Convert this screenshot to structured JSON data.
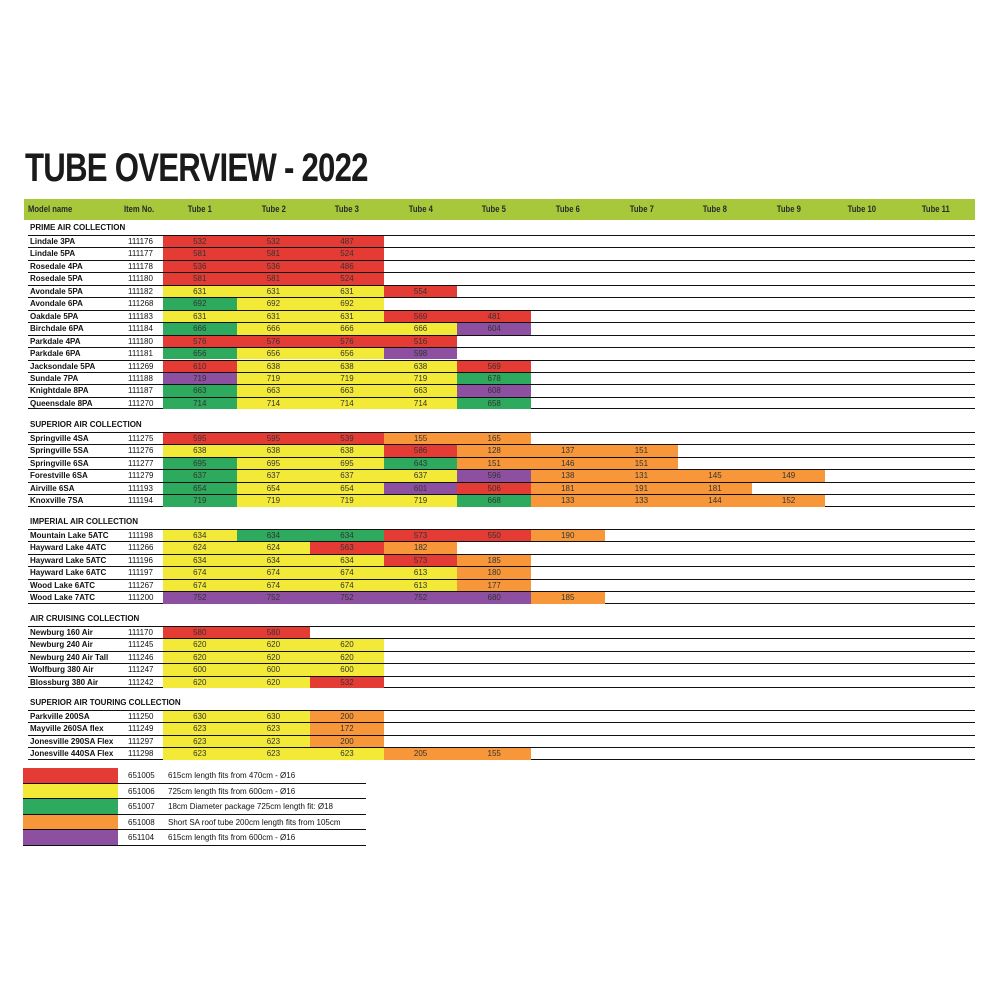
{
  "title": "TUBE OVERVIEW - 2022",
  "colors": {
    "r": "#e43c34",
    "y": "#f3ea38",
    "g": "#2daa5d",
    "o": "#f7973a",
    "p": "#8d4f9f",
    "header": "#a6c83a"
  },
  "headers": [
    "Model name",
    "Item No.",
    "Tube 1",
    "Tube 2",
    "Tube 3",
    "Tube 4",
    "Tube 5",
    "Tube 6",
    "Tube 7",
    "Tube 8",
    "Tube 9",
    "Tube 10",
    "Tube 11"
  ],
  "sections": [
    {
      "title": "PRIME AIR COLLECTION",
      "rows": [
        {
          "name": "Lindale 3PA",
          "item": "111176",
          "cells": [
            [
              "532",
              "r"
            ],
            [
              "532",
              "r"
            ],
            [
              "487",
              "r"
            ]
          ]
        },
        {
          "name": "Lindale 5PA",
          "item": "111177",
          "cells": [
            [
              "581",
              "r"
            ],
            [
              "581",
              "r"
            ],
            [
              "524",
              "r"
            ]
          ]
        },
        {
          "name": "Rosedale 4PA",
          "item": "111178",
          "cells": [
            [
              "536",
              "r"
            ],
            [
              "536",
              "r"
            ],
            [
              "486",
              "r"
            ]
          ]
        },
        {
          "name": "Rosedale 5PA",
          "item": "111180",
          "cells": [
            [
              "581",
              "r"
            ],
            [
              "581",
              "r"
            ],
            [
              "524",
              "r"
            ]
          ]
        },
        {
          "name": "Avondale 5PA",
          "item": "111182",
          "cells": [
            [
              "631",
              "y"
            ],
            [
              "631",
              "y"
            ],
            [
              "631",
              "y"
            ],
            [
              "554",
              "r"
            ]
          ]
        },
        {
          "name": "Avondale 6PA",
          "item": "111268",
          "cells": [
            [
              "692",
              "g"
            ],
            [
              "692",
              "y"
            ],
            [
              "692",
              "y"
            ]
          ]
        },
        {
          "name": "Oakdale 5PA",
          "item": "111183",
          "cells": [
            [
              "631",
              "y"
            ],
            [
              "631",
              "y"
            ],
            [
              "631",
              "y"
            ],
            [
              "569",
              "r"
            ],
            [
              "481",
              "r"
            ]
          ]
        },
        {
          "name": "Birchdale 6PA",
          "item": "111184",
          "cells": [
            [
              "666",
              "g"
            ],
            [
              "666",
              "y"
            ],
            [
              "666",
              "y"
            ],
            [
              "666",
              "y"
            ],
            [
              "604",
              "p"
            ]
          ]
        },
        {
          "name": "Parkdale 4PA",
          "item": "111180",
          "cells": [
            [
              "576",
              "r"
            ],
            [
              "576",
              "r"
            ],
            [
              "576",
              "r"
            ],
            [
              "516",
              "r"
            ]
          ]
        },
        {
          "name": "Parkdale 6PA",
          "item": "111181",
          "cells": [
            [
              "656",
              "g"
            ],
            [
              "656",
              "y"
            ],
            [
              "656",
              "y"
            ],
            [
              "598",
              "p"
            ]
          ]
        },
        {
          "name": "Jacksondale 5PA",
          "item": "111269",
          "cells": [
            [
              "610",
              "r"
            ],
            [
              "638",
              "y"
            ],
            [
              "638",
              "y"
            ],
            [
              "638",
              "y"
            ],
            [
              "569",
              "r"
            ]
          ]
        },
        {
          "name": "Sundale 7PA",
          "item": "111188",
          "cells": [
            [
              "719",
              "p"
            ],
            [
              "719",
              "y"
            ],
            [
              "719",
              "y"
            ],
            [
              "719",
              "y"
            ],
            [
              "678",
              "g"
            ]
          ]
        },
        {
          "name": "Knightdale 8PA",
          "item": "111187",
          "cells": [
            [
              "663",
              "g"
            ],
            [
              "663",
              "y"
            ],
            [
              "663",
              "y"
            ],
            [
              "663",
              "y"
            ],
            [
              "608",
              "p"
            ]
          ]
        },
        {
          "name": "Queensdale 8PA",
          "item": "111270",
          "cells": [
            [
              "714",
              "g"
            ],
            [
              "714",
              "y"
            ],
            [
              "714",
              "y"
            ],
            [
              "714",
              "y"
            ],
            [
              "658",
              "g"
            ]
          ]
        }
      ]
    },
    {
      "title": "SUPERIOR AIR COLLECTION",
      "rows": [
        {
          "name": "Springville 4SA",
          "item": "111275",
          "cells": [
            [
              "595",
              "r"
            ],
            [
              "595",
              "r"
            ],
            [
              "539",
              "r"
            ],
            [
              "155",
              "o"
            ],
            [
              "165",
              "o"
            ]
          ]
        },
        {
          "name": "Springville 5SA",
          "item": "111276",
          "cells": [
            [
              "638",
              "y"
            ],
            [
              "638",
              "y"
            ],
            [
              "638",
              "y"
            ],
            [
              "586",
              "r"
            ],
            [
              "128",
              "o"
            ],
            [
              "137",
              "o"
            ],
            [
              "151",
              "o"
            ]
          ]
        },
        {
          "name": "Springville 6SA",
          "item": "111277",
          "cells": [
            [
              "695",
              "g"
            ],
            [
              "695",
              "y"
            ],
            [
              "695",
              "y"
            ],
            [
              "643",
              "g"
            ],
            [
              "151",
              "o"
            ],
            [
              "146",
              "o"
            ],
            [
              "151",
              "o"
            ]
          ]
        },
        {
          "name": "Forestville 6SA",
          "item": "111279",
          "cells": [
            [
              "637",
              "g"
            ],
            [
              "637",
              "y"
            ],
            [
              "637",
              "y"
            ],
            [
              "637",
              "y"
            ],
            [
              "596",
              "p"
            ],
            [
              "138",
              "o"
            ],
            [
              "131",
              "o"
            ],
            [
              "145",
              "o"
            ],
            [
              "149",
              "o"
            ]
          ]
        },
        {
          "name": "Airville 6SA",
          "item": "111193",
          "cells": [
            [
              "654",
              "g"
            ],
            [
              "654",
              "y"
            ],
            [
              "654",
              "y"
            ],
            [
              "601",
              "p"
            ],
            [
              "506",
              "r"
            ],
            [
              "181",
              "o"
            ],
            [
              "191",
              "o"
            ],
            [
              "181",
              "o"
            ]
          ]
        },
        {
          "name": "Knoxville 7SA",
          "item": "111194",
          "cells": [
            [
              "719",
              "g"
            ],
            [
              "719",
              "y"
            ],
            [
              "719",
              "y"
            ],
            [
              "719",
              "y"
            ],
            [
              "668",
              "g"
            ],
            [
              "133",
              "o"
            ],
            [
              "133",
              "o"
            ],
            [
              "144",
              "o"
            ],
            [
              "152",
              "o"
            ]
          ]
        }
      ]
    },
    {
      "title": "IMPERIAL AIR COLLECTION",
      "rows": [
        {
          "name": "Mountain Lake 5ATC",
          "item": "111198",
          "cells": [
            [
              "634",
              "y"
            ],
            [
              "634",
              "g"
            ],
            [
              "634",
              "g"
            ],
            [
              "573",
              "r"
            ],
            [
              "550",
              "r"
            ],
            [
              "190",
              "o"
            ]
          ]
        },
        {
          "name": "Hayward Lake 4ATC",
          "item": "111266",
          "cells": [
            [
              "624",
              "y"
            ],
            [
              "624",
              "y"
            ],
            [
              "563",
              "r"
            ],
            [
              "182",
              "o"
            ]
          ]
        },
        {
          "name": "Hayward Lake 5ATC",
          "item": "111196",
          "cells": [
            [
              "634",
              "y"
            ],
            [
              "634",
              "y"
            ],
            [
              "634",
              "y"
            ],
            [
              "573",
              "r"
            ],
            [
              "185",
              "o"
            ]
          ]
        },
        {
          "name": "Hayward Lake 6ATC",
          "item": "111197",
          "cells": [
            [
              "674",
              "y"
            ],
            [
              "674",
              "y"
            ],
            [
              "674",
              "y"
            ],
            [
              "613",
              "y"
            ],
            [
              "180",
              "o"
            ]
          ]
        },
        {
          "name": "Wood Lake 6ATC",
          "item": "111267",
          "cells": [
            [
              "674",
              "y"
            ],
            [
              "674",
              "y"
            ],
            [
              "674",
              "y"
            ],
            [
              "613",
              "y"
            ],
            [
              "177",
              "o"
            ]
          ]
        },
        {
          "name": "Wood Lake 7ATC",
          "item": "111200",
          "cells": [
            [
              "752",
              "p"
            ],
            [
              "752",
              "p"
            ],
            [
              "752",
              "p"
            ],
            [
              "752",
              "p"
            ],
            [
              "680",
              "p"
            ],
            [
              "185",
              "o"
            ]
          ]
        }
      ]
    },
    {
      "title": "AIR CRUISING COLLECTION",
      "rows": [
        {
          "name": "Newburg 160 Air",
          "item": "111170",
          "cells": [
            [
              "580",
              "r"
            ],
            [
              "580",
              "r"
            ]
          ]
        },
        {
          "name": "Newburg 240 Air",
          "item": "111245",
          "cells": [
            [
              "620",
              "y"
            ],
            [
              "620",
              "y"
            ],
            [
              "620",
              "y"
            ]
          ]
        },
        {
          "name": "Newburg 240 Air Tall",
          "item": "111246",
          "cells": [
            [
              "620",
              "y"
            ],
            [
              "620",
              "y"
            ],
            [
              "620",
              "y"
            ]
          ]
        },
        {
          "name": "Wolfburg 380 Air",
          "item": "111247",
          "cells": [
            [
              "600",
              "y"
            ],
            [
              "600",
              "y"
            ],
            [
              "600",
              "y"
            ]
          ]
        },
        {
          "name": "Blossburg 380 Air",
          "item": "111242",
          "cells": [
            [
              "620",
              "y"
            ],
            [
              "620",
              "y"
            ],
            [
              "532",
              "r"
            ]
          ]
        }
      ]
    },
    {
      "title": "SUPERIOR AIR TOURING COLLECTION",
      "rows": [
        {
          "name": "Parkville 200SA",
          "item": "111250",
          "cells": [
            [
              "630",
              "y"
            ],
            [
              "630",
              "y"
            ],
            [
              "200",
              "o"
            ]
          ]
        },
        {
          "name": "Mayville 260SA flex",
          "item": "111249",
          "cells": [
            [
              "623",
              "y"
            ],
            [
              "623",
              "y"
            ],
            [
              "172",
              "o"
            ]
          ]
        },
        {
          "name": "Jonesville 290SA Flex",
          "item": "111297",
          "cells": [
            [
              "623",
              "y"
            ],
            [
              "623",
              "y"
            ],
            [
              "200",
              "o"
            ]
          ]
        },
        {
          "name": "Jonesville 440SA Flex",
          "item": "111298",
          "cells": [
            [
              "623",
              "y"
            ],
            [
              "623",
              "y"
            ],
            [
              "623",
              "y"
            ],
            [
              "205",
              "o"
            ],
            [
              "155",
              "o"
            ]
          ]
        }
      ]
    }
  ],
  "legend": [
    {
      "color": "r",
      "code": "651005",
      "desc": "615cm length fits from 470cm - Ø16"
    },
    {
      "color": "y",
      "code": "651006",
      "desc": "725cm length fits from 600cm - Ø16"
    },
    {
      "color": "g",
      "code": "651007",
      "desc": "18cm Diameter package 725cm length fit: Ø18"
    },
    {
      "color": "o",
      "code": "651008",
      "desc": "Short SA roof tube 200cm length fits from 105cm"
    },
    {
      "color": "p",
      "code": "651104",
      "desc": "615cm length fits from 600cm - Ø16"
    }
  ]
}
